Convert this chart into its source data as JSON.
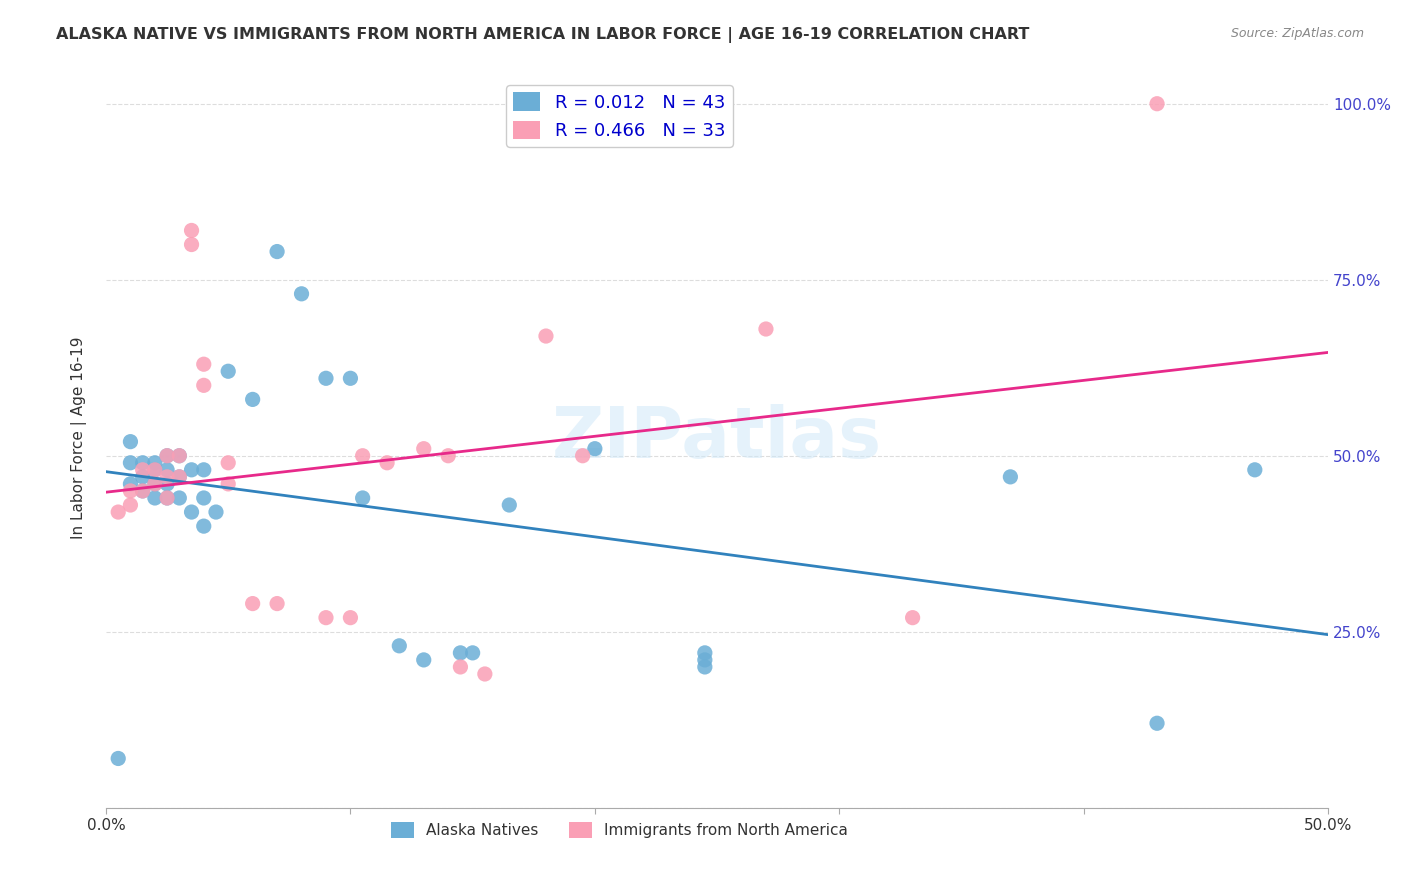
{
  "title": "ALASKA NATIVE VS IMMIGRANTS FROM NORTH AMERICA IN LABOR FORCE | AGE 16-19 CORRELATION CHART",
  "source": "Source: ZipAtlas.com",
  "xlabel": "",
  "ylabel": "In Labor Force | Age 16-19",
  "xlim": [
    0.0,
    0.5
  ],
  "ylim": [
    0.0,
    1.05
  ],
  "xticks": [
    0.0,
    0.1,
    0.2,
    0.3,
    0.4,
    0.5
  ],
  "xticklabels": [
    "0.0%",
    "",
    "",
    "",
    "",
    "50.0%"
  ],
  "yticks_right": [
    0.0,
    0.25,
    0.5,
    0.75,
    1.0
  ],
  "yticklabels_right": [
    "",
    "25.0%",
    "50.0%",
    "75.0%",
    "100.0%"
  ],
  "blue_color": "#6baed6",
  "pink_color": "#fa9fb5",
  "blue_line_color": "#3182bd",
  "pink_line_color": "#e7298a",
  "R_blue": 0.012,
  "N_blue": 43,
  "R_pink": 0.466,
  "N_pink": 33,
  "legend_label_blue": "Alaska Natives",
  "legend_label_pink": "Immigrants from North America",
  "watermark": "ZIPatlas",
  "blue_scatter_x": [
    0.005,
    0.01,
    0.01,
    0.01,
    0.015,
    0.015,
    0.015,
    0.02,
    0.02,
    0.02,
    0.02,
    0.025,
    0.025,
    0.025,
    0.025,
    0.03,
    0.03,
    0.03,
    0.035,
    0.035,
    0.04,
    0.04,
    0.04,
    0.045,
    0.05,
    0.06,
    0.07,
    0.08,
    0.09,
    0.1,
    0.105,
    0.12,
    0.13,
    0.145,
    0.15,
    0.165,
    0.2,
    0.245,
    0.245,
    0.245,
    0.37,
    0.43,
    0.47
  ],
  "blue_scatter_y": [
    0.07,
    0.52,
    0.49,
    0.46,
    0.49,
    0.47,
    0.45,
    0.49,
    0.48,
    0.46,
    0.44,
    0.5,
    0.48,
    0.46,
    0.44,
    0.5,
    0.47,
    0.44,
    0.48,
    0.42,
    0.48,
    0.44,
    0.4,
    0.42,
    0.62,
    0.58,
    0.79,
    0.73,
    0.61,
    0.61,
    0.44,
    0.23,
    0.21,
    0.22,
    0.22,
    0.43,
    0.51,
    0.22,
    0.21,
    0.2,
    0.47,
    0.12,
    0.48
  ],
  "pink_scatter_x": [
    0.005,
    0.01,
    0.01,
    0.015,
    0.015,
    0.02,
    0.02,
    0.025,
    0.025,
    0.025,
    0.03,
    0.03,
    0.035,
    0.035,
    0.04,
    0.04,
    0.05,
    0.05,
    0.06,
    0.07,
    0.09,
    0.1,
    0.105,
    0.115,
    0.13,
    0.14,
    0.145,
    0.155,
    0.18,
    0.195,
    0.27,
    0.33,
    0.43
  ],
  "pink_scatter_y": [
    0.42,
    0.45,
    0.43,
    0.48,
    0.45,
    0.48,
    0.46,
    0.5,
    0.47,
    0.44,
    0.5,
    0.47,
    0.82,
    0.8,
    0.63,
    0.6,
    0.49,
    0.46,
    0.29,
    0.29,
    0.27,
    0.27,
    0.5,
    0.49,
    0.51,
    0.5,
    0.2,
    0.19,
    0.67,
    0.5,
    0.68,
    0.27,
    1.0
  ],
  "background_color": "#ffffff",
  "grid_color": "#dddddd"
}
